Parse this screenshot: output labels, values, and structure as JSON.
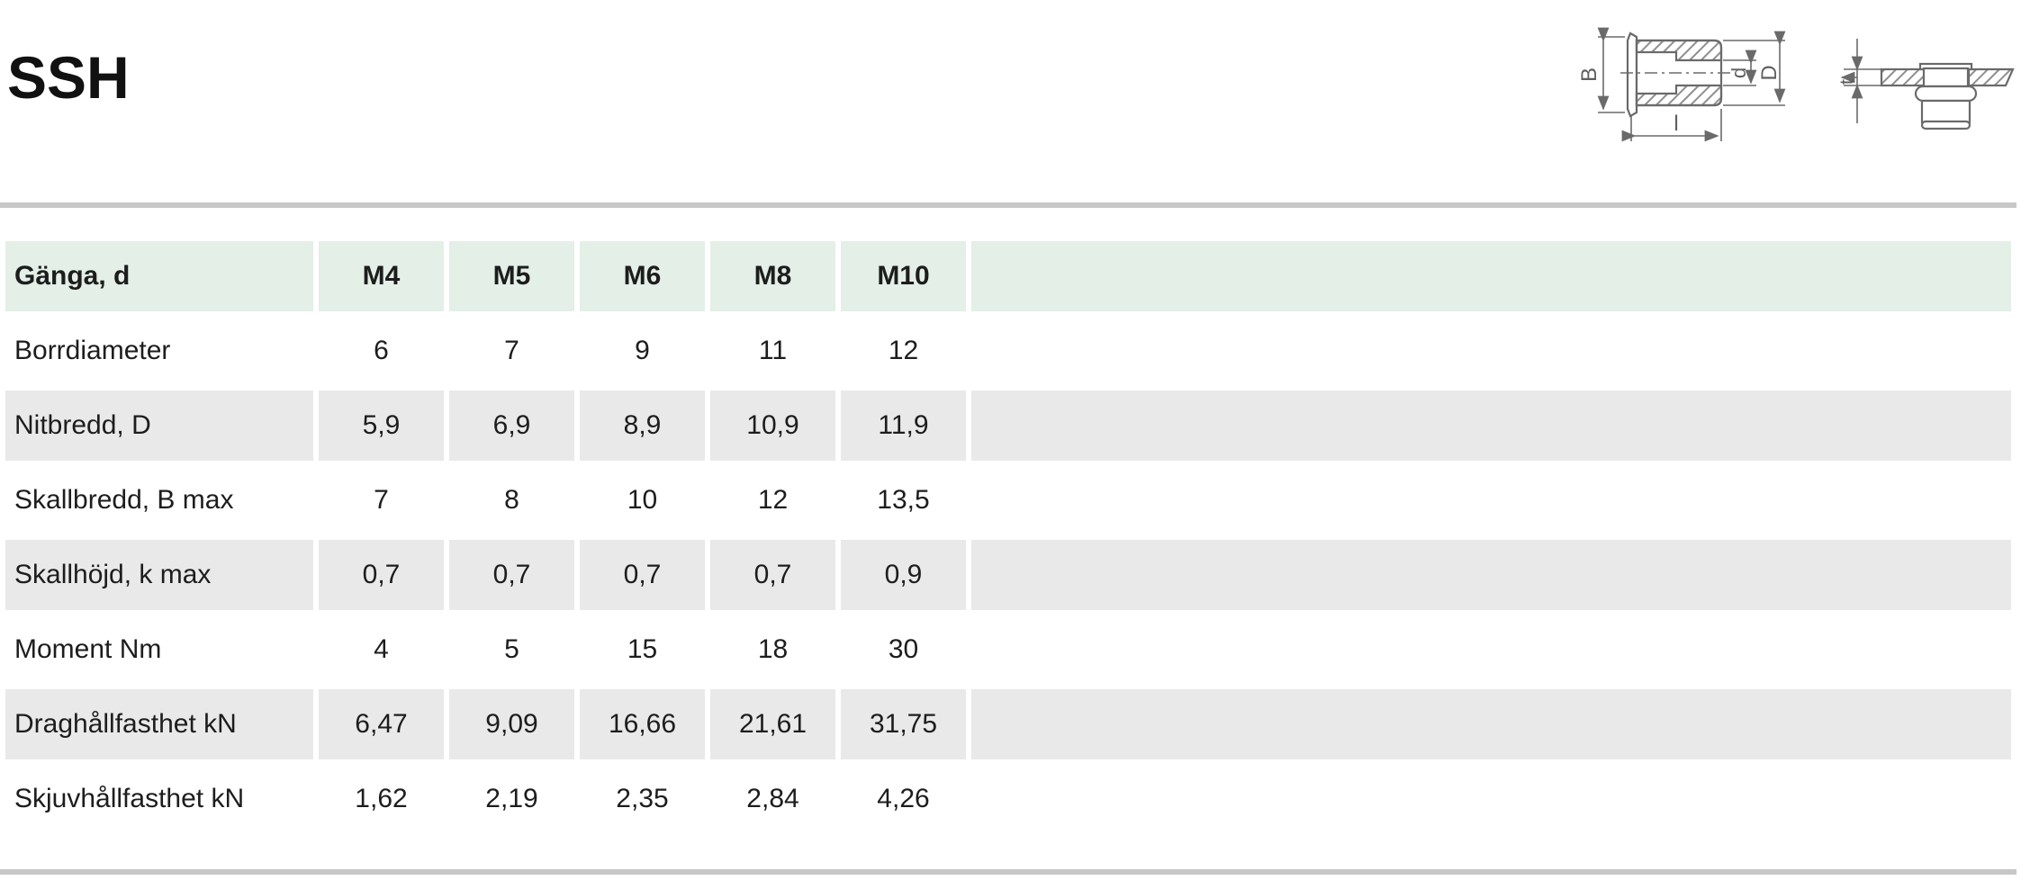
{
  "page": {
    "title": "SSH"
  },
  "diagrams": {
    "section_view": {
      "name": "rivet nut cross-section drawing",
      "dim_B": "B",
      "dim_d": "d",
      "dim_D": "D",
      "dim_l": "l"
    },
    "installed_view": {
      "name": "rivet nut installed in sheet drawing",
      "dim_t": "t"
    }
  },
  "table": {
    "header": {
      "label": "Gänga, d",
      "columns": [
        "M4",
        "M5",
        "M6",
        "M8",
        "M10"
      ]
    },
    "rows": [
      {
        "label": "Borrdiameter",
        "values": [
          "6",
          "7",
          "9",
          "11",
          "12"
        ]
      },
      {
        "label": "Nitbredd, D",
        "values": [
          "5,9",
          "6,9",
          "8,9",
          "10,9",
          "11,9"
        ]
      },
      {
        "label": "Skallbredd, B max",
        "values": [
          "7",
          "8",
          "10",
          "12",
          "13,5"
        ]
      },
      {
        "label": "Skallhöjd, k max",
        "values": [
          "0,7",
          "0,7",
          "0,7",
          "0,7",
          "0,9"
        ]
      },
      {
        "label": "Moment Nm",
        "values": [
          "4",
          "5",
          "15",
          "18",
          "30"
        ]
      },
      {
        "label": "Draghållfasthet kN",
        "values": [
          "6,47",
          "9,09",
          "16,66",
          "21,61",
          "31,75"
        ]
      },
      {
        "label": "Skjuvhållfasthet kN",
        "values": [
          "1,62",
          "2,19",
          "2,35",
          "2,84",
          "4,26"
        ]
      }
    ]
  },
  "colors": {
    "header_bg": "#e3efe7",
    "alt_row_bg": "#e9e9e9",
    "divider": "#c7c7c7",
    "text": "#1d1d1d",
    "drawing_stroke": "#696969"
  }
}
